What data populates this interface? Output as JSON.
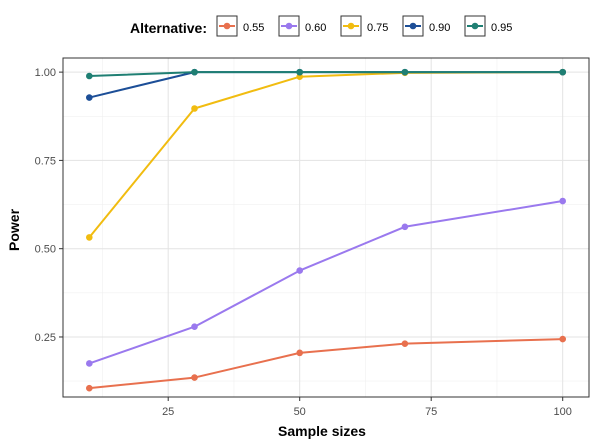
{
  "chart_data": {
    "type": "line",
    "title": "",
    "xlabel": "Sample sizes",
    "ylabel": "Power",
    "xlim": [
      5,
      105
    ],
    "ylim": [
      0.08,
      1.04
    ],
    "x_ticks": [
      25,
      50,
      75,
      100
    ],
    "x_tick_labels": [
      "25",
      "50",
      "75",
      "100"
    ],
    "y_ticks": [
      0.25,
      0.5,
      0.75,
      1.0
    ],
    "y_tick_labels": [
      "0.25",
      "0.50",
      "0.75",
      "1.00"
    ],
    "grid": true,
    "legend": {
      "title": "Alternative:",
      "position": "top"
    },
    "x": [
      10,
      30,
      50,
      70,
      100
    ],
    "series": [
      {
        "name": "0.55",
        "color": "#E8704E",
        "values": [
          0.105,
          0.135,
          0.205,
          0.231,
          0.244
        ]
      },
      {
        "name": "0.60",
        "color": "#9A79EE",
        "values": [
          0.175,
          0.279,
          0.438,
          0.562,
          0.635
        ]
      },
      {
        "name": "0.75",
        "color": "#F1BC10",
        "values": [
          0.532,
          0.897,
          0.987,
          0.998,
          1.0
        ]
      },
      {
        "name": "0.90",
        "color": "#1C4E97",
        "values": [
          0.928,
          1.0,
          1.0,
          1.0,
          1.0
        ]
      },
      {
        "name": "0.95",
        "color": "#1F7F73",
        "values": [
          0.989,
          1.0,
          1.0,
          1.0,
          1.0
        ]
      }
    ]
  }
}
